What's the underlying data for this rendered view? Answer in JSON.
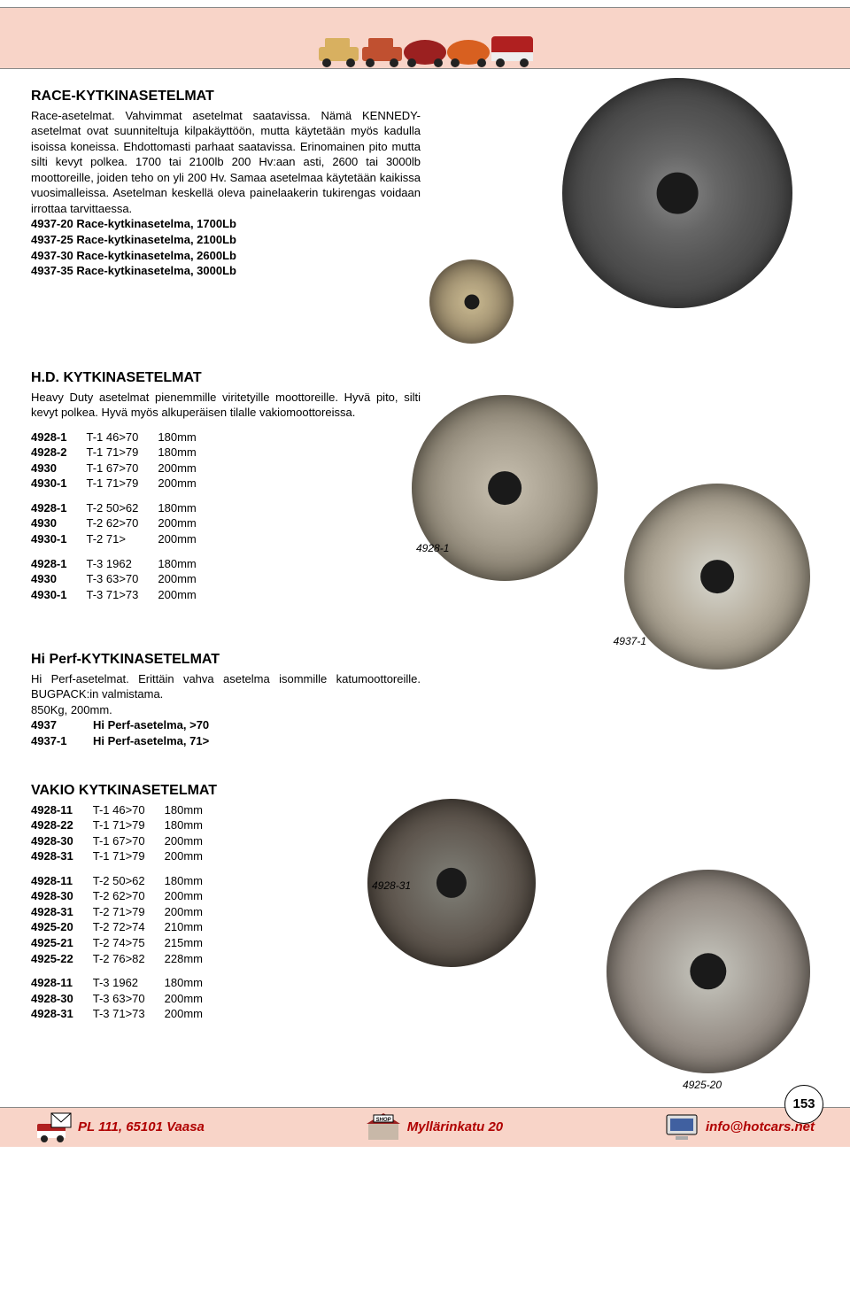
{
  "header": {
    "car_colors": [
      "#d8b060",
      "#c05030",
      "#9b2020",
      "#d86020",
      "#b02020"
    ]
  },
  "section1": {
    "title": "RACE-KYTKINASETELMAT",
    "body": "Race-asetelmat. Vahvimmat asetelmat saatavissa. Nämä KENNEDY-asetelmat ovat suunniteltuja kilpakäyttöön, mutta käytetään myös kadulla isoissa koneissa. Ehdottomasti parhaat saatavissa. Erinomainen pito mutta silti kevyt polkea. 1700 tai 2100lb 200 Hv:aan asti, 2600 tai 3000lb moottoreille, joiden teho on yli 200 Hv. Samaa asetelmaa käytetään kaikissa vuosimalleissa. Asetelman keskellä oleva painelaakerin tukirengas voidaan irrottaa tarvittaessa.",
    "parts": [
      {
        "code": "4937-20",
        "desc": "Race-kytkinasetelma, 1700Lb"
      },
      {
        "code": "4937-25",
        "desc": "Race-kytkinasetelma, 2100Lb"
      },
      {
        "code": "4937-30",
        "desc": "Race-kytkinasetelma, 2600Lb"
      },
      {
        "code": "4937-35",
        "desc": "Race-kytkinasetelma, 3000Lb"
      }
    ]
  },
  "section2": {
    "title": "H.D. KYTKINASETELMAT",
    "body": "Heavy Duty asetelmat pienemmille viritetyille moottoreille. Hyvä pito, silti kevyt polkea. Hyvä myös alkuperäisen tilalle vakiomoottoreissa.",
    "groups": [
      [
        {
          "code": "4928-1",
          "fit": "T-1 46>70",
          "size": "180mm"
        },
        {
          "code": "4928-2",
          "fit": "T-1 71>79",
          "size": "180mm"
        },
        {
          "code": "4930",
          "fit": "T-1 67>70",
          "size": "200mm"
        },
        {
          "code": "4930-1",
          "fit": "T-1 71>79",
          "size": "200mm"
        }
      ],
      [
        {
          "code": "4928-1",
          "fit": "T-2 50>62",
          "size": "180mm"
        },
        {
          "code": "4930",
          "fit": "T-2 62>70",
          "size": "200mm"
        },
        {
          "code": "4930-1",
          "fit": "T-2 71>",
          "size": "200mm"
        }
      ],
      [
        {
          "code": "4928-1",
          "fit": "T-3 1962",
          "size": "180mm"
        },
        {
          "code": "4930",
          "fit": "T-3 63>70",
          "size": "200mm"
        },
        {
          "code": "4930-1",
          "fit": "T-3 71>73",
          "size": "200mm"
        }
      ]
    ],
    "img_label": "4928-1"
  },
  "section3": {
    "title": "Hi Perf-KYTKINASETELMAT",
    "body": "Hi Perf-asetelmat. Erittäin vahva asetelma isommille katumoottoreille. BUGPACK:in valmistama.\n850Kg, 200mm.",
    "parts": [
      {
        "code": "4937",
        "desc": "Hi Perf-asetelma, >70"
      },
      {
        "code": "4937-1",
        "desc": "Hi Perf-asetelma, 71>"
      }
    ],
    "img_label": "4937-1"
  },
  "section4": {
    "title": "VAKIO KYTKINASETELMAT",
    "groups": [
      [
        {
          "code": "4928-11",
          "fit": "T-1 46>70",
          "size": "180mm"
        },
        {
          "code": "4928-22",
          "fit": "T-1 71>79",
          "size": "180mm"
        },
        {
          "code": "4928-30",
          "fit": "T-1 67>70",
          "size": "200mm"
        },
        {
          "code": "4928-31",
          "fit": "T-1 71>79",
          "size": "200mm"
        }
      ],
      [
        {
          "code": "4928-11",
          "fit": "T-2 50>62",
          "size": "180mm"
        },
        {
          "code": "4928-30",
          "fit": "T-2 62>70",
          "size": "200mm"
        },
        {
          "code": "4928-31",
          "fit": "T-2 71>79",
          "size": "200mm"
        },
        {
          "code": "4925-20",
          "fit": "T-2 72>74",
          "size": "210mm"
        },
        {
          "code": "4925-21",
          "fit": "T-2 74>75",
          "size": "215mm"
        },
        {
          "code": "4925-22",
          "fit": "T-2 76>82",
          "size": "228mm"
        }
      ],
      [
        {
          "code": "4928-11",
          "fit": "T-3 1962",
          "size": "180mm"
        },
        {
          "code": "4928-30",
          "fit": "T-3 63>70",
          "size": "200mm"
        },
        {
          "code": "4928-31",
          "fit": "T-3 71>73",
          "size": "200mm"
        }
      ]
    ],
    "img_label1": "4928-31",
    "img_label2": "4925-20"
  },
  "footer": {
    "address": "PL 111, 65101 Vaasa",
    "street": "Myllärinkatu 20",
    "email": "info@hotcars.net",
    "page": "153"
  },
  "styling": {
    "header_bg": "#f8d4c8",
    "footer_bg": "#f8d4c8",
    "footer_text_color": "#b00000",
    "body_font_size": 13,
    "heading_font_size": 16
  }
}
